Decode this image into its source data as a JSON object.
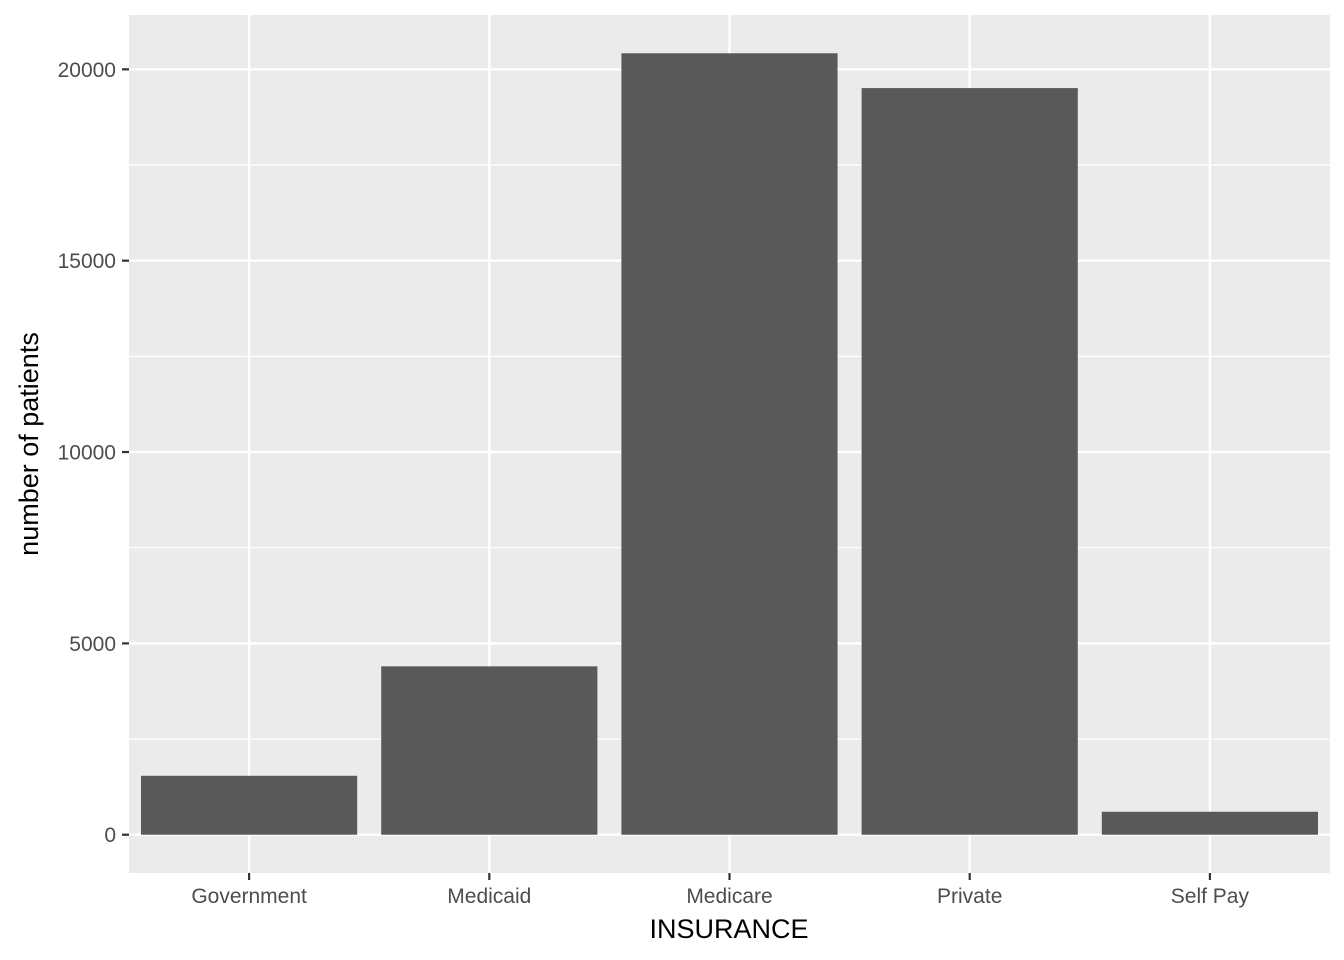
{
  "chart_data": {
    "type": "bar",
    "title": "",
    "xlabel": "INSURANCE",
    "ylabel": "number of patients",
    "categories": [
      "Government",
      "Medicaid",
      "Medicare",
      "Private",
      "Self Pay"
    ],
    "values": [
      1540,
      4400,
      20420,
      19510,
      600
    ],
    "ylim": [
      -1000,
      21420
    ],
    "yticks": [
      0,
      5000,
      10000,
      15000,
      20000
    ],
    "ytick_labels": [
      "0",
      "5000",
      "10000",
      "15000",
      "20000"
    ],
    "grid": true,
    "legend": "none",
    "colors": {
      "bar": "#595959",
      "panel": "#ebebeb",
      "grid": "#ffffff",
      "tick": "#333333"
    }
  }
}
